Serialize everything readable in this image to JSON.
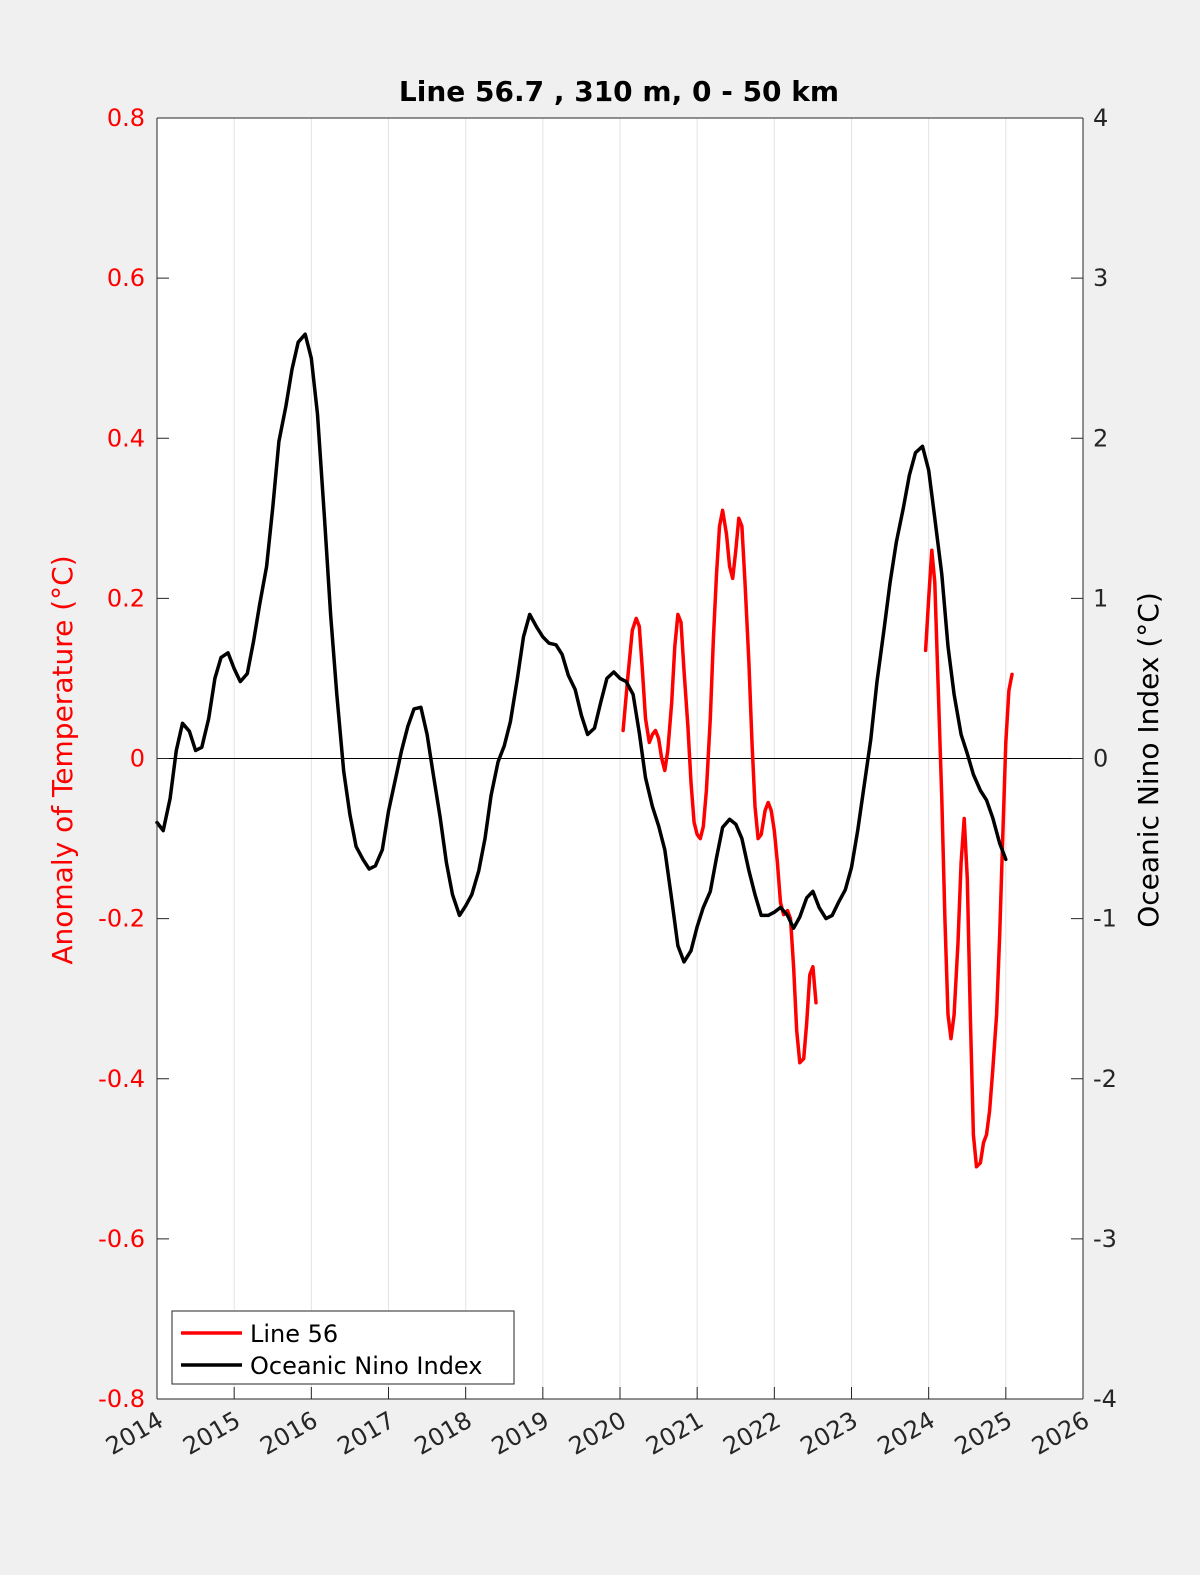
{
  "chart_data": {
    "type": "line",
    "title": "Line 56.7 , 310 m, 0 - 50 km",
    "xlabel": "",
    "ylabel_left": "Anomaly of Temperature (°C)",
    "ylabel_right": "Oceanic Nino Index (°C)",
    "xlim": [
      2014,
      2026
    ],
    "ylim_left": [
      -0.8,
      0.8
    ],
    "ylim_right": [
      -4,
      4
    ],
    "x_ticks": [
      2014,
      2015,
      2016,
      2017,
      2018,
      2019,
      2020,
      2021,
      2022,
      2023,
      2024,
      2025,
      2026
    ],
    "x_tick_labels": [
      "2014",
      "2015",
      "2016",
      "2017",
      "2018",
      "2019",
      "2020",
      "2021",
      "2022",
      "2023",
      "2024",
      "2025",
      "2026"
    ],
    "y_left_ticks": [
      -0.8,
      -0.6,
      -0.4,
      -0.2,
      0,
      0.2,
      0.4,
      0.6,
      0.8
    ],
    "y_left_tick_labels": [
      "-0.8",
      "-0.6",
      "-0.4",
      "-0.2",
      "0",
      "0.2",
      "0.4",
      "0.6",
      "0.8"
    ],
    "y_right_ticks": [
      -4,
      -3,
      -2,
      -1,
      0,
      1,
      2,
      3,
      4
    ],
    "y_right_tick_labels": [
      "-4",
      "-3",
      "-2",
      "-1",
      "0",
      "1",
      "2",
      "3",
      "4"
    ],
    "grid": "vertical",
    "zero_line": true,
    "legend_position": "bottom-left",
    "colors": {
      "line56": "#ff0000",
      "oni": "#000000",
      "left_axis": "#ff0000",
      "right_axis": "#262626"
    },
    "series": [
      {
        "name": "Line 56",
        "axis": "left",
        "color": "#ff0000",
        "segments": [
          [
            [
              2020.04,
              0.035
            ],
            [
              2020.1,
              0.1
            ],
            [
              2020.16,
              0.16
            ],
            [
              2020.21,
              0.175
            ],
            [
              2020.25,
              0.165
            ],
            [
              2020.29,
              0.11
            ],
            [
              2020.33,
              0.05
            ],
            [
              2020.38,
              0.02
            ],
            [
              2020.42,
              0.03
            ],
            [
              2020.46,
              0.035
            ],
            [
              2020.5,
              0.025
            ],
            [
              2020.54,
              0.0
            ],
            [
              2020.58,
              -0.015
            ],
            [
              2020.62,
              0.01
            ],
            [
              2020.67,
              0.07
            ],
            [
              2020.71,
              0.14
            ],
            [
              2020.75,
              0.18
            ],
            [
              2020.79,
              0.17
            ],
            [
              2020.83,
              0.11
            ],
            [
              2020.88,
              0.04
            ],
            [
              2020.92,
              -0.03
            ],
            [
              2020.96,
              -0.08
            ],
            [
              2021.0,
              -0.095
            ],
            [
              2021.04,
              -0.1
            ],
            [
              2021.08,
              -0.085
            ],
            [
              2021.12,
              -0.04
            ],
            [
              2021.17,
              0.05
            ],
            [
              2021.21,
              0.15
            ],
            [
              2021.25,
              0.23
            ],
            [
              2021.29,
              0.29
            ],
            [
              2021.33,
              0.31
            ],
            [
              2021.38,
              0.28
            ],
            [
              2021.42,
              0.24
            ],
            [
              2021.46,
              0.225
            ],
            [
              2021.5,
              0.26
            ],
            [
              2021.54,
              0.3
            ],
            [
              2021.58,
              0.29
            ],
            [
              2021.62,
              0.22
            ],
            [
              2021.67,
              0.12
            ],
            [
              2021.71,
              0.02
            ],
            [
              2021.75,
              -0.06
            ],
            [
              2021.79,
              -0.1
            ],
            [
              2021.83,
              -0.095
            ],
            [
              2021.88,
              -0.065
            ],
            [
              2021.92,
              -0.055
            ],
            [
              2021.96,
              -0.065
            ],
            [
              2022.0,
              -0.09
            ],
            [
              2022.04,
              -0.13
            ],
            [
              2022.08,
              -0.18
            ],
            [
              2022.12,
              -0.195
            ],
            [
              2022.17,
              -0.19
            ],
            [
              2022.21,
              -0.2
            ],
            [
              2022.25,
              -0.26
            ],
            [
              2022.29,
              -0.34
            ],
            [
              2022.33,
              -0.38
            ],
            [
              2022.38,
              -0.375
            ],
            [
              2022.42,
              -0.33
            ],
            [
              2022.46,
              -0.27
            ],
            [
              2022.5,
              -0.26
            ],
            [
              2022.54,
              -0.305
            ]
          ],
          [
            [
              2023.96,
              0.135
            ],
            [
              2024.0,
              0.2
            ],
            [
              2024.04,
              0.26
            ],
            [
              2024.08,
              0.22
            ],
            [
              2024.12,
              0.1
            ],
            [
              2024.17,
              -0.05
            ],
            [
              2024.21,
              -0.2
            ],
            [
              2024.25,
              -0.32
            ],
            [
              2024.29,
              -0.35
            ],
            [
              2024.33,
              -0.32
            ],
            [
              2024.38,
              -0.23
            ],
            [
              2024.42,
              -0.13
            ],
            [
              2024.46,
              -0.075
            ],
            [
              2024.5,
              -0.15
            ],
            [
              2024.54,
              -0.32
            ],
            [
              2024.58,
              -0.47
            ],
            [
              2024.62,
              -0.51
            ],
            [
              2024.67,
              -0.505
            ],
            [
              2024.71,
              -0.48
            ],
            [
              2024.75,
              -0.47
            ],
            [
              2024.79,
              -0.44
            ],
            [
              2024.83,
              -0.39
            ],
            [
              2024.88,
              -0.32
            ],
            [
              2024.92,
              -0.22
            ],
            [
              2024.96,
              -0.1
            ],
            [
              2025.0,
              0.02
            ],
            [
              2025.04,
              0.085
            ],
            [
              2025.08,
              0.105
            ]
          ]
        ]
      },
      {
        "name": "Oceanic Nino Index",
        "axis": "right",
        "color": "#000000",
        "points": [
          [
            2014.0,
            -0.4
          ],
          [
            2014.08,
            -0.45
          ],
          [
            2014.17,
            -0.25
          ],
          [
            2014.25,
            0.05
          ],
          [
            2014.33,
            0.22
          ],
          [
            2014.42,
            0.17
          ],
          [
            2014.5,
            0.05
          ],
          [
            2014.58,
            0.07
          ],
          [
            2014.67,
            0.25
          ],
          [
            2014.75,
            0.5
          ],
          [
            2014.83,
            0.63
          ],
          [
            2014.92,
            0.66
          ],
          [
            2015.0,
            0.56
          ],
          [
            2015.08,
            0.48
          ],
          [
            2015.17,
            0.53
          ],
          [
            2015.25,
            0.73
          ],
          [
            2015.33,
            0.96
          ],
          [
            2015.42,
            1.2
          ],
          [
            2015.5,
            1.57
          ],
          [
            2015.58,
            1.98
          ],
          [
            2015.67,
            2.2
          ],
          [
            2015.75,
            2.43
          ],
          [
            2015.83,
            2.6
          ],
          [
            2015.92,
            2.65
          ],
          [
            2016.0,
            2.5
          ],
          [
            2016.08,
            2.15
          ],
          [
            2016.17,
            1.5
          ],
          [
            2016.25,
            0.9
          ],
          [
            2016.33,
            0.4
          ],
          [
            2016.42,
            -0.08
          ],
          [
            2016.5,
            -0.35
          ],
          [
            2016.58,
            -0.55
          ],
          [
            2016.67,
            -0.63
          ],
          [
            2016.75,
            -0.69
          ],
          [
            2016.83,
            -0.67
          ],
          [
            2016.92,
            -0.57
          ],
          [
            2017.0,
            -0.33
          ],
          [
            2017.08,
            -0.15
          ],
          [
            2017.17,
            0.05
          ],
          [
            2017.25,
            0.2
          ],
          [
            2017.33,
            0.31
          ],
          [
            2017.42,
            0.32
          ],
          [
            2017.5,
            0.15
          ],
          [
            2017.58,
            -0.1
          ],
          [
            2017.67,
            -0.37
          ],
          [
            2017.75,
            -0.65
          ],
          [
            2017.83,
            -0.85
          ],
          [
            2017.92,
            -0.98
          ],
          [
            2018.0,
            -0.92
          ],
          [
            2018.08,
            -0.85
          ],
          [
            2018.17,
            -0.7
          ],
          [
            2018.25,
            -0.5
          ],
          [
            2018.33,
            -0.23
          ],
          [
            2018.42,
            -0.02
          ],
          [
            2018.5,
            0.08
          ],
          [
            2018.58,
            0.23
          ],
          [
            2018.67,
            0.5
          ],
          [
            2018.75,
            0.76
          ],
          [
            2018.83,
            0.9
          ],
          [
            2018.92,
            0.82
          ],
          [
            2019.0,
            0.76
          ],
          [
            2019.08,
            0.72
          ],
          [
            2019.17,
            0.71
          ],
          [
            2019.25,
            0.65
          ],
          [
            2019.33,
            0.52
          ],
          [
            2019.42,
            0.43
          ],
          [
            2019.5,
            0.27
          ],
          [
            2019.58,
            0.15
          ],
          [
            2019.67,
            0.19
          ],
          [
            2019.75,
            0.35
          ],
          [
            2019.83,
            0.5
          ],
          [
            2019.92,
            0.54
          ],
          [
            2020.0,
            0.5
          ],
          [
            2020.08,
            0.48
          ],
          [
            2020.17,
            0.4
          ],
          [
            2020.25,
            0.16
          ],
          [
            2020.33,
            -0.12
          ],
          [
            2020.42,
            -0.3
          ],
          [
            2020.5,
            -0.42
          ],
          [
            2020.58,
            -0.57
          ],
          [
            2020.67,
            -0.88
          ],
          [
            2020.75,
            -1.17
          ],
          [
            2020.83,
            -1.27
          ],
          [
            2020.92,
            -1.2
          ],
          [
            2021.0,
            -1.05
          ],
          [
            2021.08,
            -0.93
          ],
          [
            2021.17,
            -0.83
          ],
          [
            2021.25,
            -0.62
          ],
          [
            2021.33,
            -0.43
          ],
          [
            2021.42,
            -0.38
          ],
          [
            2021.5,
            -0.41
          ],
          [
            2021.58,
            -0.5
          ],
          [
            2021.67,
            -0.7
          ],
          [
            2021.75,
            -0.85
          ],
          [
            2021.83,
            -0.98
          ],
          [
            2021.92,
            -0.98
          ],
          [
            2022.0,
            -0.96
          ],
          [
            2022.08,
            -0.93
          ],
          [
            2022.17,
            -0.98
          ],
          [
            2022.25,
            -1.06
          ],
          [
            2022.33,
            -0.99
          ],
          [
            2022.42,
            -0.87
          ],
          [
            2022.5,
            -0.83
          ],
          [
            2022.58,
            -0.93
          ],
          [
            2022.67,
            -1.0
          ],
          [
            2022.75,
            -0.98
          ],
          [
            2022.83,
            -0.9
          ],
          [
            2022.92,
            -0.82
          ],
          [
            2023.0,
            -0.68
          ],
          [
            2023.08,
            -0.45
          ],
          [
            2023.17,
            -0.15
          ],
          [
            2023.25,
            0.12
          ],
          [
            2023.33,
            0.48
          ],
          [
            2023.42,
            0.8
          ],
          [
            2023.5,
            1.1
          ],
          [
            2023.58,
            1.35
          ],
          [
            2023.67,
            1.56
          ],
          [
            2023.75,
            1.77
          ],
          [
            2023.83,
            1.91
          ],
          [
            2023.92,
            1.95
          ],
          [
            2024.0,
            1.8
          ],
          [
            2024.08,
            1.5
          ],
          [
            2024.17,
            1.15
          ],
          [
            2024.25,
            0.7
          ],
          [
            2024.33,
            0.4
          ],
          [
            2024.42,
            0.15
          ],
          [
            2024.5,
            0.03
          ],
          [
            2024.58,
            -0.1
          ],
          [
            2024.67,
            -0.2
          ],
          [
            2024.75,
            -0.26
          ],
          [
            2024.83,
            -0.37
          ],
          [
            2024.92,
            -0.53
          ],
          [
            2025.0,
            -0.63
          ]
        ]
      }
    ]
  }
}
